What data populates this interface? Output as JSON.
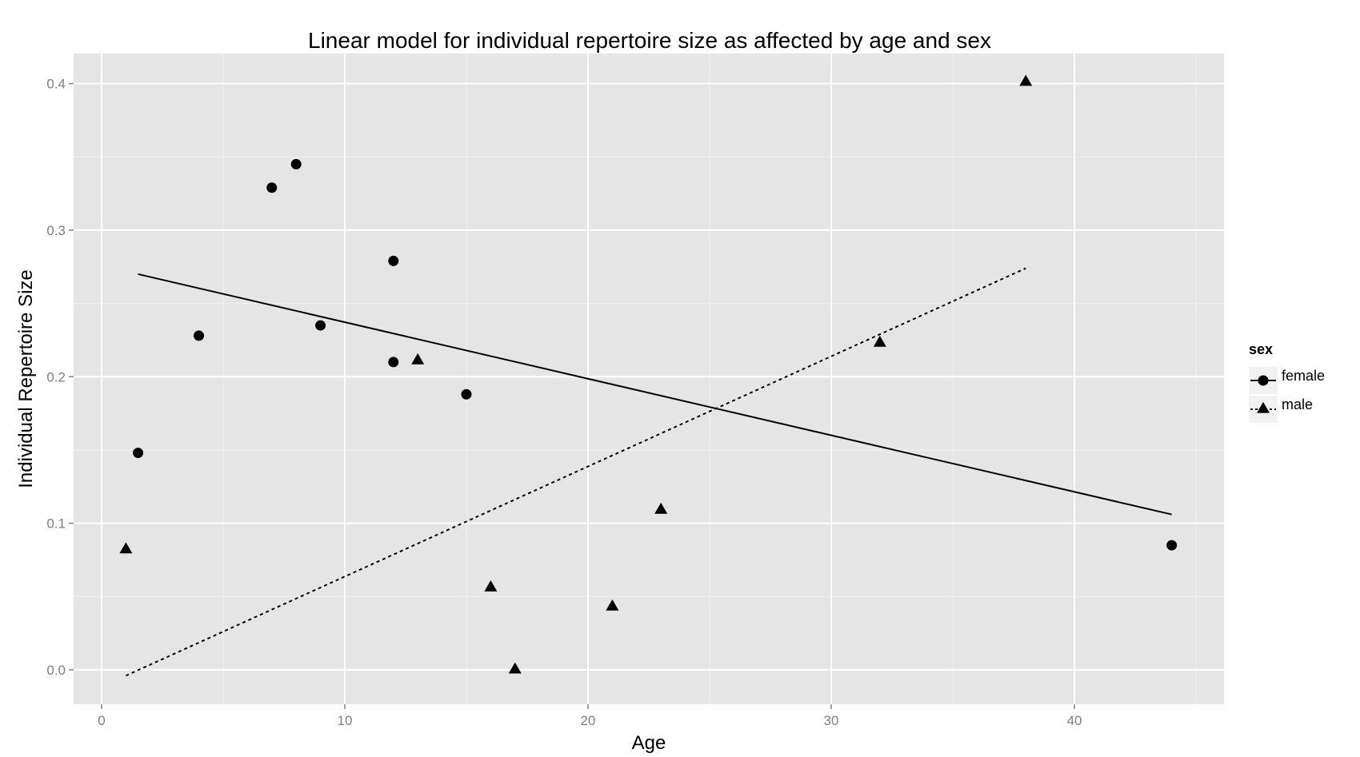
{
  "chart_data": {
    "type": "scatter",
    "title": "Linear model for individual repertoire size as affected by age and sex",
    "xlabel": "Age",
    "ylabel": "Individual Repertoire Size",
    "xlim": [
      -1.15,
      46.15
    ],
    "ylim": [
      -0.0235,
      0.4205
    ],
    "xticks": [
      0,
      10,
      20,
      30,
      40
    ],
    "yticks": [
      0.0,
      0.1,
      0.2,
      0.3,
      0.4
    ],
    "xtick_labels": [
      "0",
      "10",
      "20",
      "30",
      "40"
    ],
    "ytick_labels": [
      "0.0",
      "0.1",
      "0.2",
      "0.3",
      "0.4"
    ],
    "grid": true,
    "legend": {
      "title": "sex",
      "position": "right",
      "entries": [
        {
          "label": "female",
          "marker": "circle",
          "line": "solid"
        },
        {
          "label": "male",
          "marker": "triangle",
          "line": "dotted"
        }
      ]
    },
    "series": [
      {
        "name": "female",
        "marker": "circle",
        "points": [
          {
            "x": 1.5,
            "y": 0.148
          },
          {
            "x": 4,
            "y": 0.228
          },
          {
            "x": 7,
            "y": 0.329
          },
          {
            "x": 8,
            "y": 0.345
          },
          {
            "x": 9,
            "y": 0.235
          },
          {
            "x": 12,
            "y": 0.279
          },
          {
            "x": 12,
            "y": 0.21
          },
          {
            "x": 15,
            "y": 0.188
          },
          {
            "x": 44,
            "y": 0.085
          }
        ],
        "fit": {
          "x": [
            1.5,
            44
          ],
          "y": [
            0.27,
            0.106
          ],
          "style": "solid"
        }
      },
      {
        "name": "male",
        "marker": "triangle",
        "points": [
          {
            "x": 1,
            "y": 0.082
          },
          {
            "x": 13,
            "y": 0.211
          },
          {
            "x": 16,
            "y": 0.056
          },
          {
            "x": 17,
            "y": 0.0
          },
          {
            "x": 21,
            "y": 0.043
          },
          {
            "x": 23,
            "y": 0.109
          },
          {
            "x": 32,
            "y": 0.223
          },
          {
            "x": 38,
            "y": 0.401
          }
        ],
        "fit": {
          "x": [
            1,
            38
          ],
          "y": [
            -0.004,
            0.274
          ],
          "style": "dotted"
        }
      }
    ]
  }
}
